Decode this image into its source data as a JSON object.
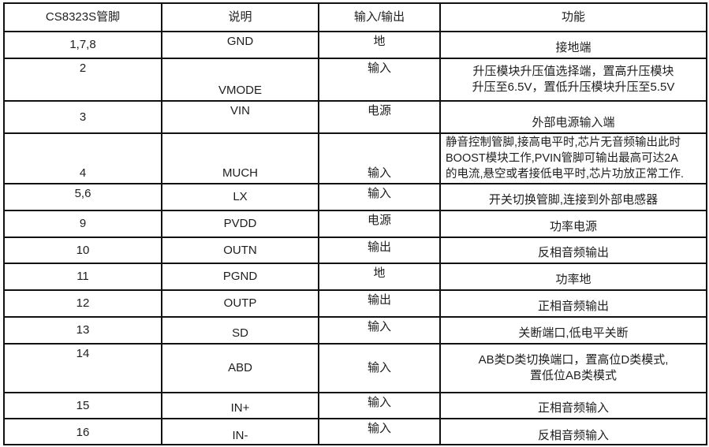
{
  "table": {
    "headers": [
      "CS8323S管脚",
      "说明",
      "输入/输出",
      "功能"
    ],
    "rows": [
      {
        "pin": "1,7,8",
        "name": "GND",
        "io": "地",
        "function": "接地端"
      },
      {
        "pin": "2",
        "name": "VMODE",
        "io": "输入",
        "function": "升压模块升压值选择端，置高升压模块\n升压至6.5V，置低升压模块升压至5.5V"
      },
      {
        "pin": "3",
        "name": "VIN",
        "io": "电源",
        "function": "外部电源输入端"
      },
      {
        "pin": "4",
        "name": "MUCH",
        "io": "输入",
        "function": "静音控制管脚,接高电平时,芯片无音频输出此时\nBOOST模块工作,PVIN管脚可输出最高可达2A\n的电流,悬空或者接低电平时,芯片功放正常工作."
      },
      {
        "pin": "5,6",
        "name": "LX",
        "io": "输入",
        "function": "开关切换管脚,连接到外部电感器"
      },
      {
        "pin": "9",
        "name": "PVDD",
        "io": "电源",
        "function": "功率电源"
      },
      {
        "pin": "10",
        "name": "OUTN",
        "io": "输出",
        "function": "反相音频输出"
      },
      {
        "pin": "11",
        "name": "PGND",
        "io": "地",
        "function": "功率地"
      },
      {
        "pin": "12",
        "name": "OUTP",
        "io": "输出",
        "function": "正相音频输出"
      },
      {
        "pin": "13",
        "name": "SD",
        "io": "输入",
        "function": "关断端口,低电平关断"
      },
      {
        "pin": "14",
        "name": "ABD",
        "io": "输入",
        "function": "AB类D类切换端口，置高位D类模式,\n置低位AB类模式"
      },
      {
        "pin": "15",
        "name": "IN+",
        "io": "输入",
        "function": "正相音频输入"
      },
      {
        "pin": "16",
        "name": "IN-",
        "io": "输入",
        "function": "反相音频输入"
      }
    ]
  }
}
